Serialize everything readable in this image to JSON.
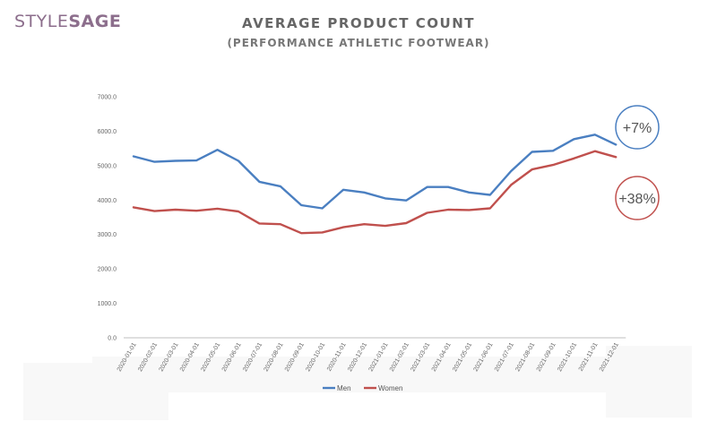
{
  "brand": {
    "part1": "STYLE",
    "part2": "SAGE",
    "color": "#8c6e8c"
  },
  "title": "AVERAGE PRODUCT COUNT",
  "subtitle": "(PERFORMANCE ATHLETIC FOOTWEAR)",
  "badges": [
    {
      "label": "+7%",
      "color": "#4a7fc1"
    },
    {
      "label": "+38%",
      "color": "#c0504d"
    }
  ],
  "chart_data": {
    "type": "line",
    "title": "AVERAGE PRODUCT COUNT",
    "subtitle": "(PERFORMANCE ATHLETIC FOOTWEAR)",
    "xlabel": "",
    "ylabel": "",
    "ylim": [
      0,
      7000
    ],
    "yticks": [
      "0.0",
      "1000.0",
      "2000.0",
      "3000.0",
      "4000.0",
      "5000.0",
      "6000.0",
      "7000.0"
    ],
    "grid": false,
    "legend_position": "bottom",
    "categories": [
      "2020-01-01",
      "2020-02-01",
      "2020-03-01",
      "2020-04-01",
      "2020-05-01",
      "2020-06-01",
      "2020-07-01",
      "2020-08-01",
      "2020-09-01",
      "2020-10-01",
      "2020-11-01",
      "2020-12-01",
      "2021-01-01",
      "2021-02-01",
      "2021-03-01",
      "2021-04-01",
      "2021-05-01",
      "2021-06-01",
      "2021-07-01",
      "2021-08-01",
      "2021-09-01",
      "2021-10-01",
      "2021-11-01",
      "2021-12-01"
    ],
    "series": [
      {
        "name": "Men",
        "color": "#4a7fc1",
        "values": [
          5270,
          5110,
          5140,
          5150,
          5460,
          5140,
          4530,
          4400,
          3850,
          3760,
          4300,
          4220,
          4050,
          3990,
          4380,
          4380,
          4220,
          4150,
          4840,
          5400,
          5430,
          5770,
          5900,
          5610
        ]
      },
      {
        "name": "Women",
        "color": "#c0504d",
        "values": [
          3790,
          3680,
          3720,
          3690,
          3750,
          3670,
          3320,
          3300,
          3040,
          3060,
          3210,
          3300,
          3250,
          3330,
          3630,
          3720,
          3710,
          3760,
          4440,
          4890,
          5020,
          5210,
          5420,
          5250
        ]
      }
    ]
  }
}
